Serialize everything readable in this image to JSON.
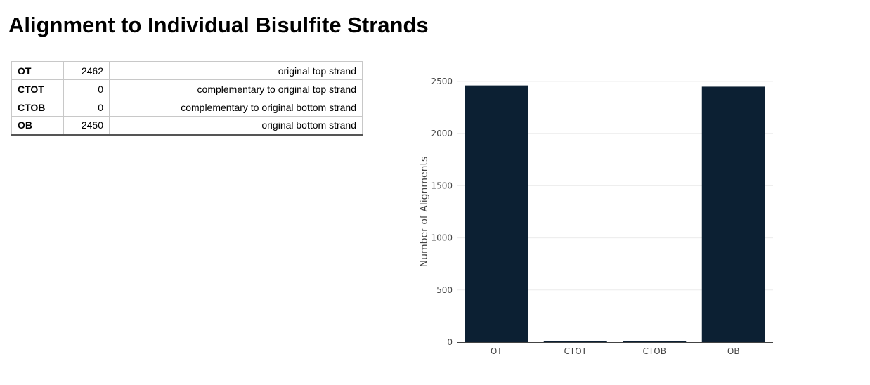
{
  "page": {
    "title": "Alignment to Individual Bisulfite Strands"
  },
  "table": {
    "rows": [
      {
        "code": "OT",
        "count": "2462",
        "description": "original top strand"
      },
      {
        "code": "CTOT",
        "count": "0",
        "description": "complementary to original top strand"
      },
      {
        "code": "CTOB",
        "count": "0",
        "description": "complementary to original bottom strand"
      },
      {
        "code": "OB",
        "count": "2450",
        "description": "original bottom strand"
      }
    ]
  },
  "chart_data": {
    "type": "bar",
    "categories": [
      "OT",
      "CTOT",
      "CTOB",
      "OB"
    ],
    "values": [
      2462,
      0,
      0,
      2450
    ],
    "title": "",
    "xlabel": "",
    "ylabel": "Number of Alignments",
    "ylim": [
      0,
      2500
    ],
    "yticks": [
      0,
      500,
      1000,
      1500,
      2000,
      2500
    ],
    "grid": true,
    "bar_color": "#0c2033"
  }
}
